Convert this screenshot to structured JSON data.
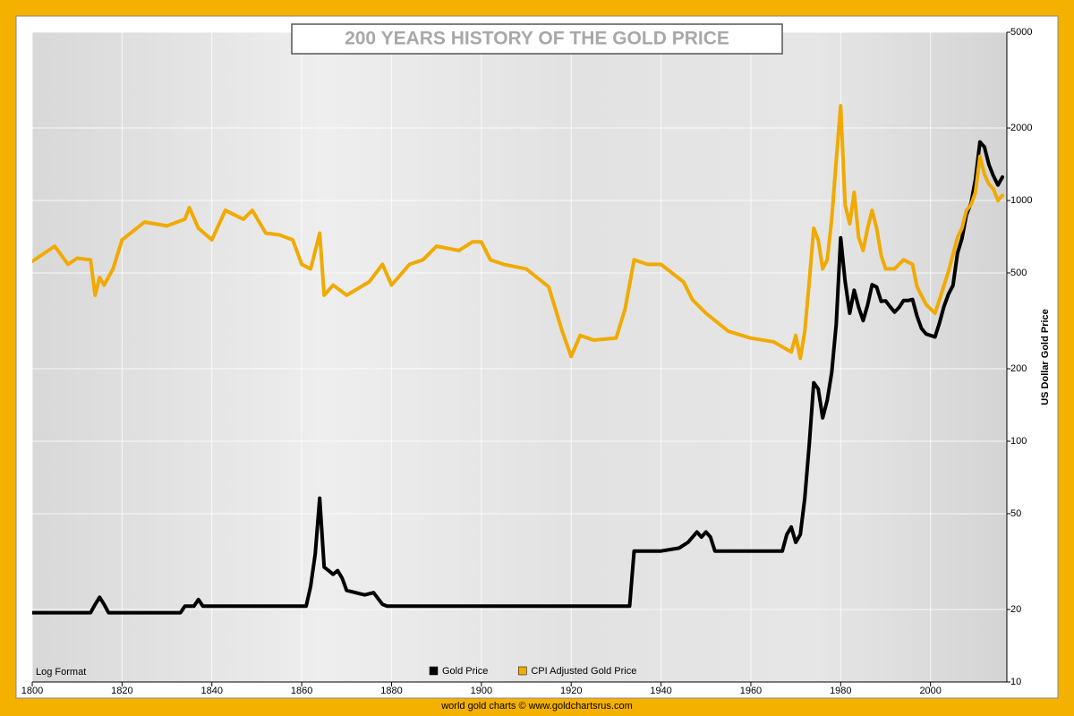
{
  "chart_data": {
    "type": "line",
    "title": "200 YEARS HISTORY OF THE GOLD PRICE",
    "y_label": "US Dollar Gold Price",
    "annotation": "Log Format",
    "footer": "world gold charts © www.goldchartsrus.com",
    "log_scale": true,
    "grid": true,
    "legend_position": "bottom",
    "xlim": [
      1800,
      2017
    ],
    "xticks": [
      1800,
      1820,
      1840,
      1860,
      1880,
      1900,
      1920,
      1940,
      1960,
      1980,
      2000
    ],
    "ylim": [
      10,
      5000
    ],
    "yticks": [
      10,
      20,
      50,
      100,
      200,
      500,
      1000,
      2000,
      5000
    ],
    "series": [
      {
        "name": "Gold Price",
        "color": "#000000",
        "x": [
          1800,
          1813,
          1814,
          1815,
          1816,
          1817,
          1833,
          1834,
          1836,
          1837,
          1838,
          1861,
          1862,
          1863,
          1864,
          1865,
          1866,
          1867,
          1868,
          1869,
          1870,
          1872,
          1874,
          1876,
          1878,
          1879,
          1933,
          1934,
          1940,
          1944,
          1946,
          1948,
          1949,
          1950,
          1951,
          1952,
          1967,
          1968,
          1969,
          1970,
          1971,
          1972,
          1973,
          1974,
          1975,
          1976,
          1977,
          1978,
          1979,
          1980,
          1981,
          1982,
          1983,
          1984,
          1985,
          1986,
          1987,
          1988,
          1989,
          1990,
          1991,
          1992,
          1993,
          1994,
          1995,
          1996,
          1997,
          1998,
          1999,
          2000,
          2001,
          2002,
          2003,
          2004,
          2005,
          2006,
          2007,
          2008,
          2009,
          2010,
          2011,
          2012,
          2013,
          2014,
          2015,
          2016
        ],
        "values": [
          19.39,
          19.39,
          21,
          22.5,
          21,
          19.39,
          19.39,
          20.67,
          20.67,
          22,
          20.67,
          20.67,
          25,
          34,
          58,
          30,
          29,
          28,
          29,
          27,
          24,
          23.5,
          23,
          23.5,
          21,
          20.67,
          20.67,
          35,
          35,
          36,
          38,
          42,
          40,
          42,
          40,
          35,
          35,
          41,
          44,
          38,
          41,
          58,
          97,
          175,
          165,
          125,
          148,
          193,
          306,
          700,
          460,
          340,
          424,
          360,
          317,
          368,
          447,
          437,
          381,
          383,
          362,
          344,
          360,
          384,
          384,
          388,
          331,
          294,
          279,
          275,
          271,
          310,
          363,
          409,
          444,
          603,
          695,
          872,
          972,
          1225,
          1750,
          1669,
          1411,
          1266,
          1160,
          1250
        ]
      },
      {
        "name": "CPI Adjusted Gold Price",
        "color": "#f0aa00",
        "x": [
          1800,
          1805,
          1808,
          1810,
          1813,
          1814,
          1815,
          1816,
          1818,
          1820,
          1825,
          1830,
          1834,
          1835,
          1837,
          1840,
          1843,
          1847,
          1849,
          1852,
          1855,
          1858,
          1860,
          1862,
          1864,
          1865,
          1867,
          1870,
          1875,
          1878,
          1880,
          1884,
          1887,
          1890,
          1895,
          1898,
          1900,
          1902,
          1905,
          1910,
          1915,
          1918,
          1920,
          1922,
          1925,
          1930,
          1932,
          1934,
          1937,
          1940,
          1945,
          1947,
          1950,
          1955,
          1960,
          1965,
          1969,
          1970,
          1971,
          1972,
          1973,
          1974,
          1975,
          1976,
          1977,
          1978,
          1979,
          1980,
          1981,
          1982,
          1983,
          1984,
          1985,
          1986,
          1987,
          1988,
          1989,
          1990,
          1992,
          1994,
          1996,
          1997,
          1999,
          2001,
          2002,
          2004,
          2006,
          2007,
          2008,
          2009,
          2010,
          2011,
          2012,
          2013,
          2014,
          2015,
          2016
        ],
        "values": [
          559,
          646,
          543,
          576,
          567,
          404,
          479,
          445,
          520,
          686,
          814,
          784,
          836,
          934,
          767,
          686,
          910,
          836,
          910,
          732,
          720,
          686,
          543,
          520,
          732,
          404,
          445,
          404,
          459,
          543,
          445,
          543,
          567,
          646,
          620,
          673,
          673,
          567,
          543,
          520,
          438,
          286,
          225,
          275,
          263,
          268,
          354,
          567,
          543,
          543,
          459,
          387,
          340,
          286,
          268,
          259,
          235,
          275,
          221,
          286,
          459,
          767,
          686,
          520,
          567,
          836,
          1459,
          2477,
          958,
          800,
          1082,
          702,
          620,
          767,
          910,
          767,
          593,
          520,
          520,
          567,
          543,
          438,
          370,
          340,
          387,
          508,
          702,
          767,
          910,
          958,
          1082,
          1524,
          1284,
          1170,
          1117,
          1000,
          1050
        ]
      }
    ]
  }
}
